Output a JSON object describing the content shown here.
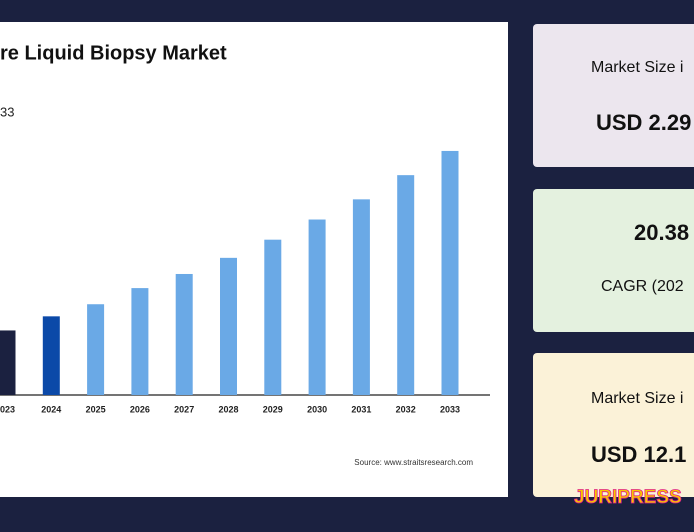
{
  "chart_data": {
    "type": "bar",
    "title": "re Liquid Biopsy Market",
    "subtitle": "33",
    "categories": [
      "023",
      "2024",
      "2025",
      "2026",
      "2027",
      "2028",
      "2029",
      "2030",
      "2031",
      "2032",
      "2033"
    ],
    "values": [
      3.2,
      3.9,
      4.5,
      5.3,
      6.0,
      6.8,
      7.7,
      8.7,
      9.7,
      10.9,
      12.1
    ],
    "colors": [
      "#1b2140",
      "#0b49a8",
      "#6aa9e6",
      "#6aa9e6",
      "#6aa9e6",
      "#6aa9e6",
      "#6aa9e6",
      "#6aa9e6",
      "#6aa9e6",
      "#6aa9e6",
      "#6aa9e6"
    ],
    "source": "Source: www.straitsresearch.com"
  },
  "cards": [
    {
      "label": "Market Size i",
      "value": "USD 2.29"
    },
    {
      "value": "20.38",
      "label": "CAGR (202"
    },
    {
      "label": "Market Size i",
      "value": "USD 12.1"
    }
  ],
  "logo": "JURIPRESS"
}
